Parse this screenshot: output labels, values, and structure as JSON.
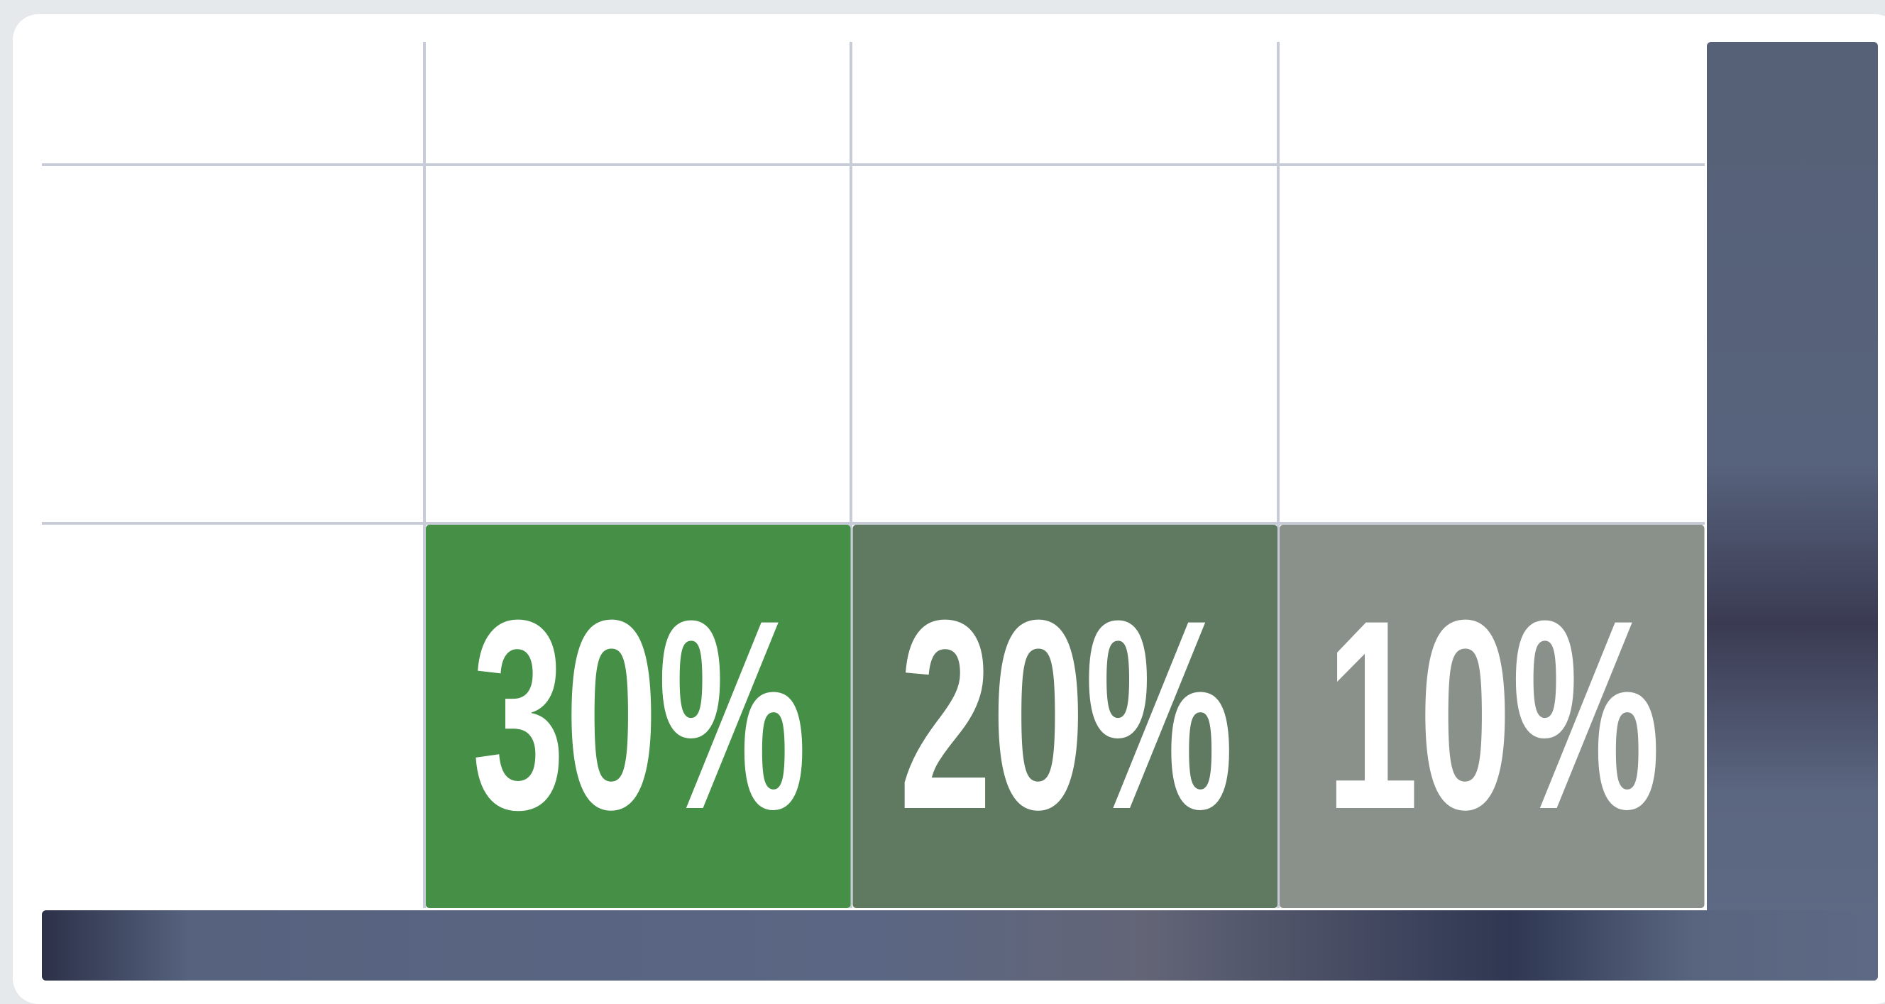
{
  "tiles": [
    {
      "label": "30%",
      "color": "#458f47"
    },
    {
      "label": "20%",
      "color": "#5f7a61"
    },
    {
      "label": "10%",
      "color": "#8a918a"
    }
  ]
}
